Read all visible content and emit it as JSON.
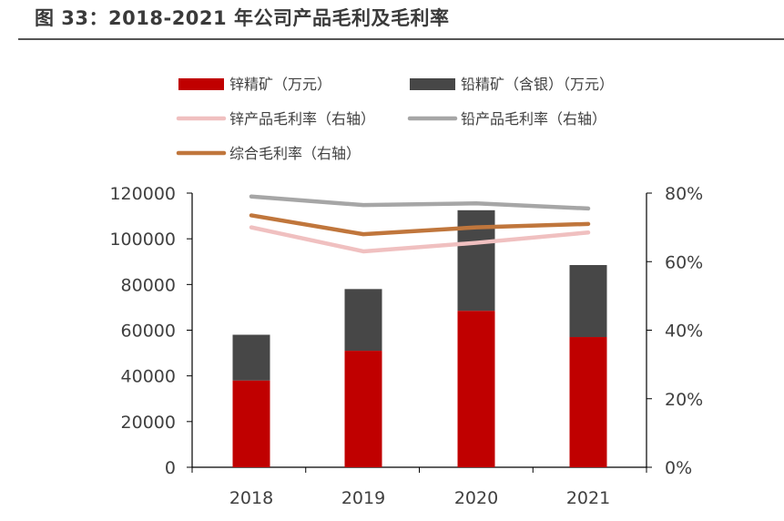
{
  "figure": {
    "title": "图 33：2018-2021 年公司产品毛利及毛利率"
  },
  "chart_data": {
    "type": "bar",
    "stacked": true,
    "categories": [
      "2018",
      "2019",
      "2020",
      "2021"
    ],
    "series": [
      {
        "name": "锌精矿（万元）",
        "kind": "bar",
        "axis": "left",
        "color": "#c00000",
        "values": [
          38000,
          51000,
          68500,
          57000
        ]
      },
      {
        "name": "铅精矿（含银）（万元）",
        "kind": "bar",
        "axis": "left",
        "color": "#474747",
        "values": [
          20000,
          27000,
          44000,
          31500
        ]
      },
      {
        "name": "锌产品毛利率（右轴）",
        "kind": "line",
        "axis": "right",
        "color": "#f0c0c0",
        "values": [
          70,
          63,
          65.5,
          68.5
        ]
      },
      {
        "name": "铅产品毛利率（右轴）",
        "kind": "line",
        "axis": "right",
        "color": "#a6a6a6",
        "values": [
          79,
          76.5,
          77,
          75.5
        ]
      },
      {
        "name": "综合毛利率（右轴）",
        "kind": "line",
        "axis": "right",
        "color": "#c0763c",
        "values": [
          73.5,
          68,
          70,
          71
        ]
      }
    ],
    "y_left": {
      "min": 0,
      "max": 120000,
      "ticks": [
        "0",
        "20000",
        "40000",
        "60000",
        "80000",
        "100000",
        "120000"
      ]
    },
    "y_right": {
      "min": 0,
      "max": 80,
      "ticks": [
        "0%",
        "20%",
        "40%",
        "60%",
        "80%"
      ]
    },
    "legend_position": "top",
    "grid": false
  }
}
